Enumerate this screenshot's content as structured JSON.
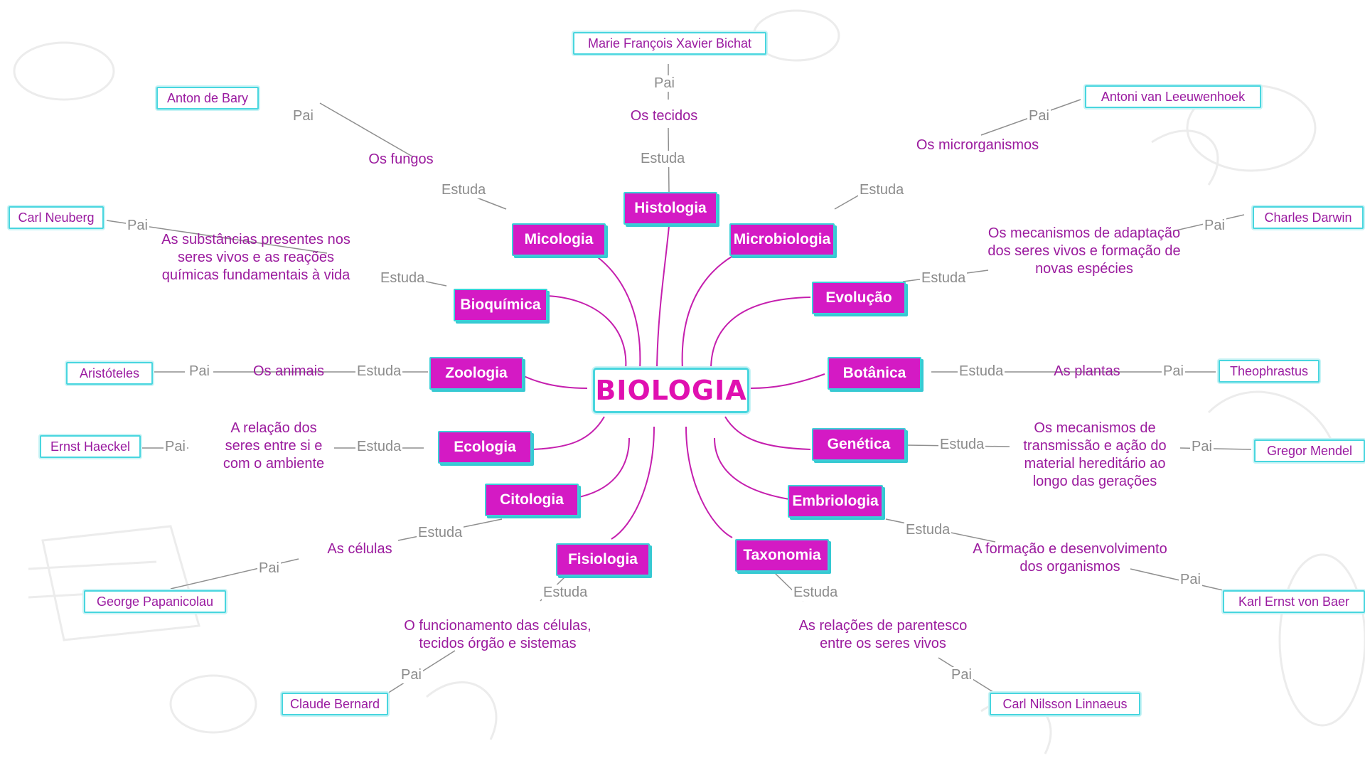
{
  "central": "BIOLOGIA",
  "relation_labels": {
    "studies": "Estuda",
    "father": "Pai"
  },
  "colors": {
    "branch_fill": "#d41ac4",
    "outline": "#48d6df",
    "study_text": "#9b1b9e",
    "label_text": "#8c8c8c",
    "center_text": "#e010b0"
  },
  "branches": [
    {
      "name": "Histologia",
      "studies": "Os tecidos",
      "father": "Marie François Xavier Bichat"
    },
    {
      "name": "Micologia",
      "studies": "Os fungos",
      "father": "Anton de Bary"
    },
    {
      "name": "Microbiologia",
      "studies": "Os microrganismos",
      "father": "Antoni van Leeuwenhoek"
    },
    {
      "name": "Bioquímica",
      "studies": "As substâncias presentes nos seres vivos e as reações químicas fundamentais à vida",
      "father": "Carl Neuberg"
    },
    {
      "name": "Evolução",
      "studies": "Os mecanismos de adaptação dos seres vivos e formação de novas espécies",
      "father": "Charles Darwin"
    },
    {
      "name": "Zoologia",
      "studies": "Os animais",
      "father": "Aristóteles"
    },
    {
      "name": "Botânica",
      "studies": "As plantas",
      "father": "Theophrastus"
    },
    {
      "name": "Ecologia",
      "studies": "A relação dos seres entre si e com o ambiente",
      "father": "Ernst Haeckel"
    },
    {
      "name": "Genética",
      "studies": "Os mecanismos de transmissão e ação do material hereditário ao longo das gerações",
      "father": "Gregor Mendel"
    },
    {
      "name": "Citologia",
      "studies": "As células",
      "father": "George Papanicolau"
    },
    {
      "name": "Embriologia",
      "studies": "A formação e desenvolvimento dos organismos",
      "father": "Karl Ernst von Baer"
    },
    {
      "name": "Fisiologia",
      "studies": "O funcionamento das células, tecidos órgão e sistemas",
      "father": "Claude Bernard"
    },
    {
      "name": "Taxonomia",
      "studies": "As relações de parentesco entre os seres vivos",
      "father": "Carl Nilsson Linnaeus"
    }
  ]
}
